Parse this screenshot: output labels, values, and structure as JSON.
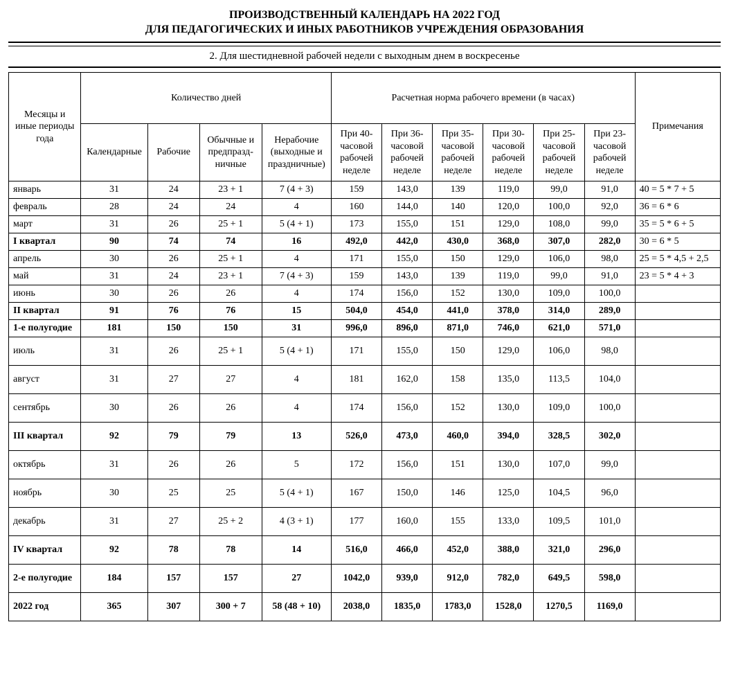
{
  "title": {
    "line1": "ПРОИЗВОДСТВЕННЫЙ КАЛЕНДАРЬ НА 2022 ГОД",
    "line2": "ДЛЯ ПЕДАГОГИЧЕСКИХ И ИНЫХ РАБОТНИКОВ УЧРЕЖДЕНИЯ ОБРАЗОВАНИЯ"
  },
  "subtitle": "2. Для шестидневной рабочей недели с выходным днем в воскресенье",
  "headers": {
    "periods": "Месяцы и иные периоды года",
    "days_group": "Количество дней",
    "hours_group": "Расчетная норма рабочего времени (в часах)",
    "notes": "Примечания",
    "calendar": "Календарные",
    "work": "Рабочие",
    "ordinary": "Обычные и предпразд-ничные",
    "nonwork": "Нерабочие (выходные и праздничные)",
    "h40": "При 40-часовой рабочей неделе",
    "h36": "При 36-часовой рабочей неделе",
    "h35": "При 35-часовой рабочей неделе",
    "h30": "При 30-часовой рабочей неделе",
    "h25": "При 25-часовой рабочей неделе",
    "h23": "При 23-часовой рабочей неделе"
  },
  "rows": [
    {
      "label": "январь",
      "d1": "31",
      "d2": "24",
      "d3": "23 + 1",
      "d4": "7 (4 + 3)",
      "h40": "159",
      "h36": "143,0",
      "h35": "139",
      "h30": "119,0",
      "h25": "99,0",
      "h23": "91,0",
      "note": "40 = 5 * 7 + 5",
      "bold": false,
      "tall": false
    },
    {
      "label": "февраль",
      "d1": "28",
      "d2": "24",
      "d3": "24",
      "d4": "4",
      "h40": "160",
      "h36": "144,0",
      "h35": "140",
      "h30": "120,0",
      "h25": "100,0",
      "h23": "92,0",
      "note": "36 = 6 * 6",
      "bold": false,
      "tall": false
    },
    {
      "label": "март",
      "d1": "31",
      "d2": "26",
      "d3": "25 + 1",
      "d4": "5 (4 + 1)",
      "h40": "173",
      "h36": "155,0",
      "h35": "151",
      "h30": "129,0",
      "h25": "108,0",
      "h23": "99,0",
      "note": "35 = 5 * 6 + 5",
      "bold": false,
      "tall": false
    },
    {
      "label": "I квартал",
      "d1": "90",
      "d2": "74",
      "d3": "74",
      "d4": "16",
      "h40": "492,0",
      "h36": "442,0",
      "h35": "430,0",
      "h30": "368,0",
      "h25": "307,0",
      "h23": "282,0",
      "note": "30 = 6 * 5",
      "bold": true,
      "tall": false
    },
    {
      "label": "апрель",
      "d1": "30",
      "d2": "26",
      "d3": "25 + 1",
      "d4": "4",
      "h40": "171",
      "h36": "155,0",
      "h35": "150",
      "h30": "129,0",
      "h25": "106,0",
      "h23": "98,0",
      "note": "25 = 5 * 4,5 + 2,5",
      "bold": false,
      "tall": false
    },
    {
      "label": "май",
      "d1": "31",
      "d2": "24",
      "d3": "23 + 1",
      "d4": "7 (4 + 3)",
      "h40": "159",
      "h36": "143,0",
      "h35": "139",
      "h30": "119,0",
      "h25": "99,0",
      "h23": "91,0",
      "note": "23 = 5 * 4 + 3",
      "bold": false,
      "tall": false
    },
    {
      "label": "июнь",
      "d1": "30",
      "d2": "26",
      "d3": "26",
      "d4": "4",
      "h40": "174",
      "h36": "156,0",
      "h35": "152",
      "h30": "130,0",
      "h25": "109,0",
      "h23": "100,0",
      "note": "",
      "bold": false,
      "tall": false
    },
    {
      "label": "II квартал",
      "d1": "91",
      "d2": "76",
      "d3": "76",
      "d4": "15",
      "h40": "504,0",
      "h36": "454,0",
      "h35": "441,0",
      "h30": "378,0",
      "h25": "314,0",
      "h23": "289,0",
      "note": "",
      "bold": true,
      "tall": false
    },
    {
      "label": "1-е полугодие",
      "d1": "181",
      "d2": "150",
      "d3": "150",
      "d4": "31",
      "h40": "996,0",
      "h36": "896,0",
      "h35": "871,0",
      "h30": "746,0",
      "h25": "621,0",
      "h23": "571,0",
      "note": "",
      "bold": true,
      "tall": false
    },
    {
      "label": "июль",
      "d1": "31",
      "d2": "26",
      "d3": "25 + 1",
      "d4": "5 (4 + 1)",
      "h40": "171",
      "h36": "155,0",
      "h35": "150",
      "h30": "129,0",
      "h25": "106,0",
      "h23": "98,0",
      "note": "",
      "bold": false,
      "tall": true
    },
    {
      "label": "август",
      "d1": "31",
      "d2": "27",
      "d3": "27",
      "d4": "4",
      "h40": "181",
      "h36": "162,0",
      "h35": "158",
      "h30": "135,0",
      "h25": "113,5",
      "h23": "104,0",
      "note": "",
      "bold": false,
      "tall": true
    },
    {
      "label": "сентябрь",
      "d1": "30",
      "d2": "26",
      "d3": "26",
      "d4": "4",
      "h40": "174",
      "h36": "156,0",
      "h35": "152",
      "h30": "130,0",
      "h25": "109,0",
      "h23": "100,0",
      "note": "",
      "bold": false,
      "tall": true
    },
    {
      "label": "III квартал",
      "d1": "92",
      "d2": "79",
      "d3": "79",
      "d4": "13",
      "h40": "526,0",
      "h36": "473,0",
      "h35": "460,0",
      "h30": "394,0",
      "h25": "328,5",
      "h23": "302,0",
      "note": "",
      "bold": true,
      "tall": true
    },
    {
      "label": "октябрь",
      "d1": "31",
      "d2": "26",
      "d3": "26",
      "d4": "5",
      "h40": "172",
      "h36": "156,0",
      "h35": "151",
      "h30": "130,0",
      "h25": "107,0",
      "h23": "99,0",
      "note": "",
      "bold": false,
      "tall": true
    },
    {
      "label": "ноябрь",
      "d1": "30",
      "d2": "25",
      "d3": "25",
      "d4": "5 (4 + 1)",
      "h40": "167",
      "h36": "150,0",
      "h35": "146",
      "h30": "125,0",
      "h25": "104,5",
      "h23": "96,0",
      "note": "",
      "bold": false,
      "tall": true
    },
    {
      "label": "декабрь",
      "d1": "31",
      "d2": "27",
      "d3": "25 + 2",
      "d4": "4 (3 + 1)",
      "h40": "177",
      "h36": "160,0",
      "h35": "155",
      "h30": "133,0",
      "h25": "109,5",
      "h23": "101,0",
      "note": "",
      "bold": false,
      "tall": true
    },
    {
      "label": "IV квартал",
      "d1": "92",
      "d2": "78",
      "d3": "78",
      "d4": "14",
      "h40": "516,0",
      "h36": "466,0",
      "h35": "452,0",
      "h30": "388,0",
      "h25": "321,0",
      "h23": "296,0",
      "note": "",
      "bold": true,
      "tall": true
    },
    {
      "label": "2-е полугодие",
      "d1": "184",
      "d2": "157",
      "d3": "157",
      "d4": "27",
      "h40": "1042,0",
      "h36": "939,0",
      "h35": "912,0",
      "h30": "782,0",
      "h25": "649,5",
      "h23": "598,0",
      "note": "",
      "bold": true,
      "tall": true
    },
    {
      "label": "2022 год",
      "d1": "365",
      "d2": "307",
      "d3": "300 + 7",
      "d4": "58 (48 + 10)",
      "h40": "2038,0",
      "h36": "1835,0",
      "h35": "1783,0",
      "h30": "1528,0",
      "h25": "1270,5",
      "h23": "1169,0",
      "note": "",
      "bold": true,
      "tall": true
    }
  ],
  "style": {
    "background_color": "#ffffff",
    "text_color": "#000000",
    "border_color": "#000000",
    "font_family": "Times New Roman",
    "title_fontsize": 16,
    "body_fontsize": 14,
    "col_widths": {
      "label": 100,
      "d1": 92,
      "d2": 72,
      "d3": 86,
      "d4": 96,
      "h": 70,
      "note": 118
    }
  }
}
